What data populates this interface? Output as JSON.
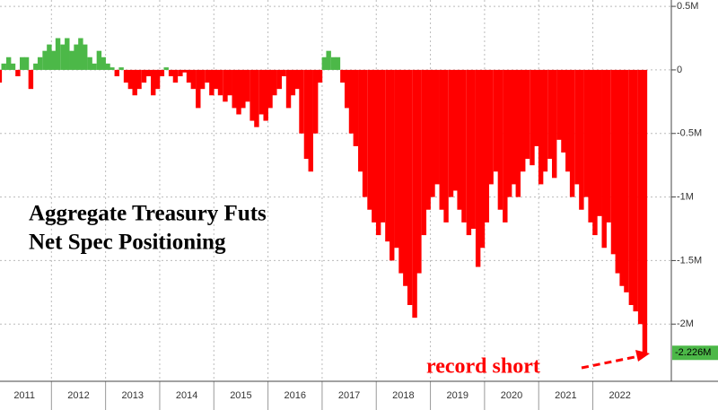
{
  "chart_data": {
    "type": "bar",
    "title": [
      "Aggregate Treasury Futs",
      "Net Spec Positioning"
    ],
    "annotation": "record short",
    "positive_color": "#4cb848",
    "negative_color": "#ff0000",
    "x": [
      2011.04,
      2011.12,
      2011.21,
      2011.29,
      2011.38,
      2011.46,
      2011.54,
      2011.62,
      2011.71,
      2011.79,
      2011.88,
      2011.96,
      2012.04,
      2012.12,
      2012.21,
      2012.29,
      2012.38,
      2012.46,
      2012.54,
      2012.62,
      2012.71,
      2012.79,
      2012.88,
      2012.96,
      2013.04,
      2013.12,
      2013.21,
      2013.29,
      2013.38,
      2013.46,
      2013.54,
      2013.62,
      2013.71,
      2013.79,
      2013.88,
      2013.96,
      2014.04,
      2014.12,
      2014.21,
      2014.29,
      2014.38,
      2014.46,
      2014.54,
      2014.62,
      2014.71,
      2014.79,
      2014.88,
      2014.96,
      2015.04,
      2015.12,
      2015.21,
      2015.29,
      2015.38,
      2015.46,
      2015.54,
      2015.62,
      2015.71,
      2015.79,
      2015.88,
      2015.96,
      2016.04,
      2016.12,
      2016.21,
      2016.29,
      2016.38,
      2016.46,
      2016.54,
      2016.62,
      2016.71,
      2016.79,
      2016.88,
      2016.96,
      2017.04,
      2017.12,
      2017.21,
      2017.29,
      2017.38,
      2017.46,
      2017.54,
      2017.62,
      2017.71,
      2017.79,
      2017.88,
      2017.96,
      2018.04,
      2018.12,
      2018.21,
      2018.29,
      2018.38,
      2018.46,
      2018.54,
      2018.62,
      2018.71,
      2018.79,
      2018.88,
      2018.96,
      2019.04,
      2019.12,
      2019.21,
      2019.29,
      2019.38,
      2019.46,
      2019.54,
      2019.62,
      2019.71,
      2019.79,
      2019.88,
      2019.96,
      2020.04,
      2020.12,
      2020.21,
      2020.29,
      2020.38,
      2020.46,
      2020.54,
      2020.62,
      2020.71,
      2020.79,
      2020.88,
      2020.96,
      2021.04,
      2021.12,
      2021.21,
      2021.29,
      2021.38,
      2021.46,
      2021.54,
      2021.62,
      2021.71,
      2021.79,
      2021.88,
      2021.96,
      2022.04,
      2022.12,
      2022.21,
      2022.29,
      2022.38,
      2022.46,
      2022.54,
      2022.62,
      2022.71,
      2022.79,
      2022.88,
      2022.96
    ],
    "values": [
      -0.1,
      0.05,
      0.1,
      0.05,
      -0.05,
      0.1,
      0.1,
      -0.15,
      0.05,
      0.1,
      0.15,
      0.2,
      0.15,
      0.25,
      0.2,
      0.25,
      0.15,
      0.2,
      0.25,
      0.2,
      0.1,
      0.05,
      0.15,
      0.1,
      0.05,
      0.02,
      -0.05,
      0.02,
      -0.1,
      -0.15,
      -0.2,
      -0.15,
      -0.1,
      -0.05,
      -0.2,
      -0.15,
      -0.05,
      0.02,
      -0.05,
      -0.1,
      -0.05,
      -0.02,
      -0.1,
      -0.15,
      -0.3,
      -0.15,
      -0.1,
      -0.2,
      -0.15,
      -0.2,
      -0.25,
      -0.2,
      -0.3,
      -0.35,
      -0.3,
      -0.25,
      -0.4,
      -0.45,
      -0.35,
      -0.4,
      -0.3,
      -0.2,
      -0.15,
      -0.05,
      -0.3,
      -0.2,
      -0.15,
      -0.5,
      -0.7,
      -0.8,
      -0.5,
      -0.1,
      0.1,
      0.15,
      0.1,
      0.1,
      -0.1,
      -0.3,
      -0.5,
      -0.6,
      -0.8,
      -1.0,
      -1.1,
      -1.2,
      -1.3,
      -1.2,
      -1.35,
      -1.5,
      -1.4,
      -1.6,
      -1.7,
      -1.85,
      -1.95,
      -1.6,
      -1.3,
      -1.1,
      -1.0,
      -0.9,
      -1.1,
      -1.2,
      -1.0,
      -0.95,
      -1.1,
      -1.2,
      -1.3,
      -1.25,
      -1.55,
      -1.4,
      -1.2,
      -0.9,
      -0.8,
      -1.1,
      -1.2,
      -1.0,
      -0.9,
      -1.0,
      -0.8,
      -0.7,
      -0.75,
      -0.6,
      -0.9,
      -0.8,
      -0.7,
      -0.85,
      -0.55,
      -0.65,
      -0.8,
      -1.0,
      -0.9,
      -1.1,
      -1.0,
      -1.2,
      -1.3,
      -1.15,
      -1.4,
      -1.2,
      -1.45,
      -1.6,
      -1.7,
      -1.75,
      -1.85,
      -1.9,
      -2.0,
      -2.226
    ],
    "end_label": {
      "value": -2.226,
      "label": "-2.226M"
    },
    "xlim": [
      2011.05,
      2023.45
    ],
    "xticks": [
      2011,
      2012,
      2013,
      2014,
      2015,
      2016,
      2017,
      2018,
      2019,
      2020,
      2021,
      2022
    ],
    "ylim": [
      0.55,
      -2.45
    ],
    "yticks": [
      {
        "value": 0.5,
        "label": "0.5M"
      },
      0,
      {
        "value": -0.5,
        "label": "-0.5M"
      },
      {
        "value": -1,
        "label": "-1M"
      },
      {
        "value": -1.5,
        "label": "-1.5M"
      },
      {
        "value": -2,
        "label": "-2M"
      }
    ],
    "grid": true
  }
}
